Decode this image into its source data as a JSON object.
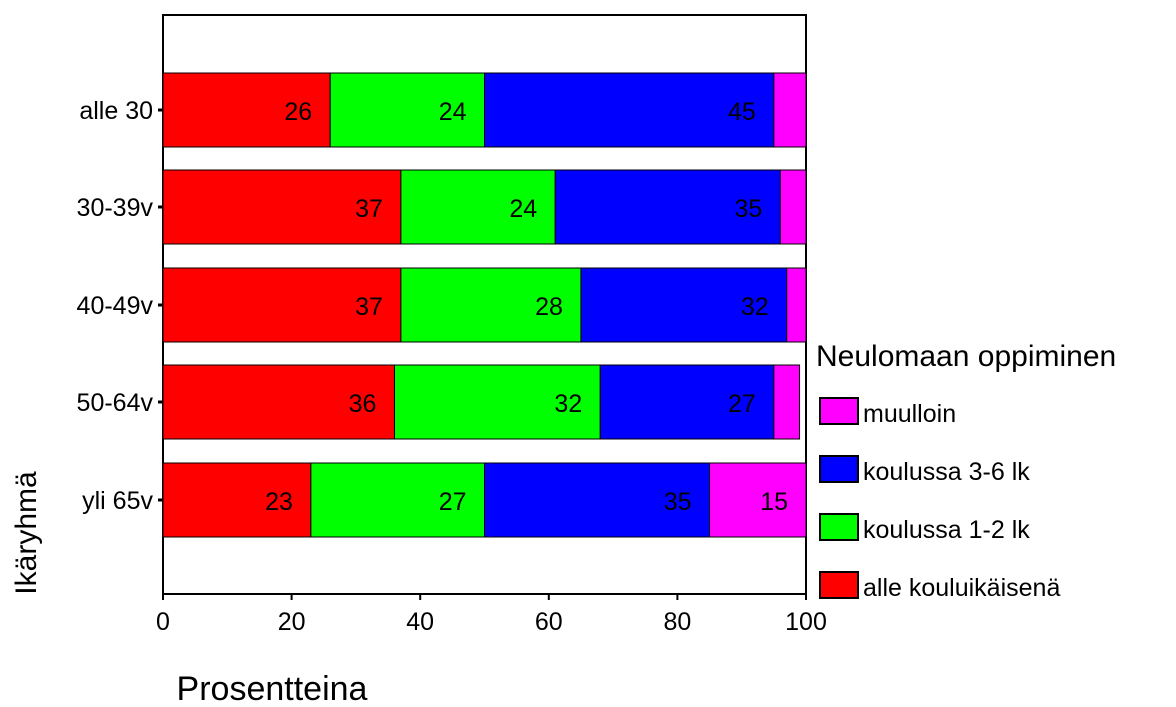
{
  "chart_data": {
    "type": "bar",
    "orientation": "horizontal",
    "stacked": true,
    "xlabel": "Prosentteina",
    "ylabel": "Ikäryhmä",
    "xlim": [
      0,
      100
    ],
    "xticks": [
      0,
      20,
      40,
      60,
      80,
      100
    ],
    "grid": false,
    "categories": [
      "alle 30",
      "30-39v",
      "40-49v",
      "50-64v",
      "yli 65v"
    ],
    "series": [
      {
        "name": "alle kouluikäisenä",
        "color": "#ff0000",
        "values": [
          26,
          37,
          37,
          36,
          23
        ],
        "labels": [
          "26",
          "37",
          "37",
          "36",
          "23"
        ]
      },
      {
        "name": "koulussa 1-2 lk",
        "color": "#00ff00",
        "values": [
          24,
          24,
          28,
          32,
          27
        ],
        "labels": [
          "24",
          "24",
          "28",
          "32",
          "27"
        ]
      },
      {
        "name": "koulussa 3-6 lk",
        "color": "#0000ff",
        "values": [
          45,
          35,
          32,
          27,
          35
        ],
        "labels": [
          "45",
          "35",
          "32",
          "27",
          "35"
        ]
      },
      {
        "name": "muulloin",
        "color": "#ff00ff",
        "values": [
          5,
          4,
          3,
          4,
          15
        ],
        "labels": [
          "",
          "",
          "",
          "",
          "15"
        ]
      }
    ],
    "legend": {
      "title": "Neulomaan oppiminen",
      "placement": "right",
      "order": [
        "muulloin",
        "koulussa 3-6 lk",
        "koulussa 1-2 lk",
        "alle kouluikäisenä"
      ]
    }
  }
}
